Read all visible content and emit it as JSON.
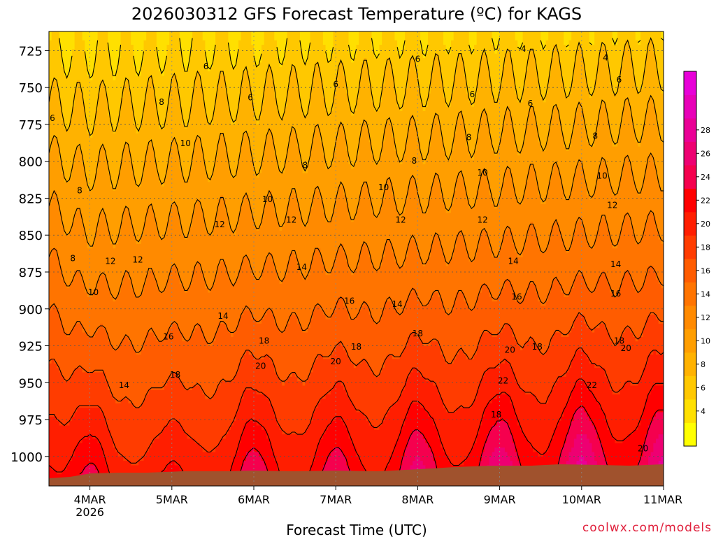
{
  "chart_data": {
    "type": "heatmap",
    "title": "2026030312 GFS Forecast Temperature (ºC) for KAGS",
    "xlabel": "Forecast Time (UTC)",
    "ylabel": "",
    "x_ticks": [
      {
        "t": 12,
        "label": "4MAR",
        "sublabel": "2026"
      },
      {
        "t": 36,
        "label": "5MAR"
      },
      {
        "t": 60,
        "label": "6MAR"
      },
      {
        "t": 84,
        "label": "7MAR"
      },
      {
        "t": 108,
        "label": "8MAR"
      },
      {
        "t": 132,
        "label": "9MAR"
      },
      {
        "t": 156,
        "label": "10MAR"
      },
      {
        "t": 180,
        "label": "11MAR"
      }
    ],
    "xlim_hours": [
      0,
      180
    ],
    "y_ticks": [
      725,
      750,
      775,
      800,
      825,
      850,
      875,
      900,
      925,
      950,
      975,
      1000
    ],
    "ylim_hPa": [
      712,
      1020
    ],
    "y_axis_reversed": true,
    "colorbar": {
      "levels": [
        2,
        4,
        6,
        8,
        10,
        12,
        14,
        16,
        18,
        20,
        22,
        24,
        26,
        28,
        30
      ],
      "labels": [
        "4",
        "6",
        "8",
        "10",
        "12",
        "14",
        "16",
        "18",
        "20",
        "22",
        "24",
        "26",
        "28"
      ],
      "colors": [
        "#ffff00",
        "#ffe000",
        "#ffc800",
        "#ffb200",
        "#ff9e00",
        "#ff8a00",
        "#ff7400",
        "#ff5c00",
        "#ff3c00",
        "#ff1e00",
        "#ff0000",
        "#f5004e",
        "#ee0072",
        "#ea0096",
        "#e800b8",
        "#e800d8"
      ]
    },
    "contour_labels": [
      {
        "t": 7,
        "p": 866,
        "v": "8"
      },
      {
        "t": 9,
        "p": 820,
        "v": "8"
      },
      {
        "t": 1,
        "p": 771,
        "v": "6"
      },
      {
        "t": 13,
        "p": 889,
        "v": "10"
      },
      {
        "t": 18,
        "p": 868,
        "v": "12"
      },
      {
        "t": 26,
        "p": 867,
        "v": "12"
      },
      {
        "t": 40,
        "p": 788,
        "v": "10"
      },
      {
        "t": 33,
        "p": 760,
        "v": "8"
      },
      {
        "t": 46,
        "p": 736,
        "v": "6"
      },
      {
        "t": 22,
        "p": 952,
        "v": "14"
      },
      {
        "t": 35,
        "p": 919,
        "v": "16"
      },
      {
        "t": 37,
        "p": 945,
        "v": "18"
      },
      {
        "t": 50,
        "p": 843,
        "v": "12"
      },
      {
        "t": 51,
        "p": 905,
        "v": "14"
      },
      {
        "t": 59,
        "p": 757,
        "v": "6"
      },
      {
        "t": 63,
        "p": 922,
        "v": "18"
      },
      {
        "t": 62,
        "p": 939,
        "v": "20"
      },
      {
        "t": 64,
        "p": 826,
        "v": "10"
      },
      {
        "t": 71,
        "p": 840,
        "v": "12"
      },
      {
        "t": 74,
        "p": 872,
        "v": "14"
      },
      {
        "t": 75,
        "p": 803,
        "v": "8"
      },
      {
        "t": 84,
        "p": 936,
        "v": "20"
      },
      {
        "t": 84,
        "p": 748,
        "v": "6"
      },
      {
        "t": 88,
        "p": 895,
        "v": "16"
      },
      {
        "t": 90,
        "p": 926,
        "v": "18"
      },
      {
        "t": 98,
        "p": 818,
        "v": "10"
      },
      {
        "t": 102,
        "p": 897,
        "v": "14"
      },
      {
        "t": 103,
        "p": 840,
        "v": "12"
      },
      {
        "t": 107,
        "p": 800,
        "v": "8"
      },
      {
        "t": 108,
        "p": 917,
        "v": "18"
      },
      {
        "t": 108,
        "p": 731,
        "v": "6"
      },
      {
        "t": 124,
        "p": 755,
        "v": "6"
      },
      {
        "t": 123,
        "p": 784,
        "v": "8"
      },
      {
        "t": 127,
        "p": 808,
        "v": "10"
      },
      {
        "t": 127,
        "p": 840,
        "v": "12"
      },
      {
        "t": 131,
        "p": 972,
        "v": "18"
      },
      {
        "t": 133,
        "p": 949,
        "v": "22"
      },
      {
        "t": 135,
        "p": 928,
        "v": "20"
      },
      {
        "t": 136,
        "p": 868,
        "v": "14"
      },
      {
        "t": 137,
        "p": 892,
        "v": "16"
      },
      {
        "t": 139,
        "p": 724,
        "v": "4"
      },
      {
        "t": 141,
        "p": 761,
        "v": "6"
      },
      {
        "t": 143,
        "p": 926,
        "v": "18"
      },
      {
        "t": 159,
        "p": 952,
        "v": "22"
      },
      {
        "t": 160,
        "p": 783,
        "v": "8"
      },
      {
        "t": 162,
        "p": 810,
        "v": "10"
      },
      {
        "t": 163,
        "p": 730,
        "v": "4"
      },
      {
        "t": 165,
        "p": 830,
        "v": "12"
      },
      {
        "t": 166,
        "p": 870,
        "v": "14"
      },
      {
        "t": 166,
        "p": 890,
        "v": "16"
      },
      {
        "t": 167,
        "p": 922,
        "v": "18"
      },
      {
        "t": 167,
        "p": 745,
        "v": "6"
      },
      {
        "t": 169,
        "p": 927,
        "v": "20"
      },
      {
        "t": 174,
        "p": 995,
        "v": "20"
      }
    ]
  },
  "footer": {
    "credit": "coolwx.com/models"
  }
}
